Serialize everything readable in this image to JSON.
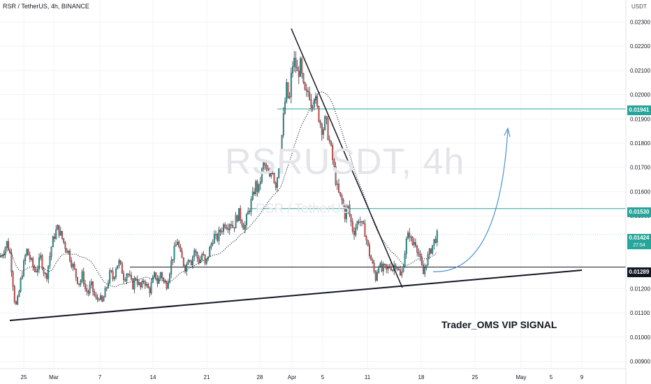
{
  "chart_data": {
    "type": "candlestick",
    "title": "RSR / TetherUS, 4h, BINANCE",
    "watermark": "RSRUSDT, 4h",
    "watermark_sub": "RSR / TetherUS",
    "currency": "USDT",
    "y_ticks": [
      "0.02300",
      "0.02200",
      "0.02100",
      "0.02000",
      "0.01900",
      "0.01800",
      "0.01700",
      "0.01600",
      "0.01500",
      "0.01200",
      "0.01100",
      "0.01000",
      "0.00900"
    ],
    "y_range": [
      0.0087,
      0.0235
    ],
    "x_ticks": [
      "25",
      "Mar",
      "7",
      "14",
      "21",
      "28",
      "Apr",
      "5",
      "11",
      "18",
      "25",
      "May",
      "5",
      "9"
    ],
    "price_tags": {
      "resistance_high": "0.01941",
      "resistance_mid": "0.01530",
      "current_price": "0.01424",
      "countdown": "27:54",
      "support": "0.01289"
    },
    "levels": [
      {
        "name": "resistance-high",
        "value": 0.01941,
        "color": "#26a69a"
      },
      {
        "name": "resistance-mid",
        "value": 0.0153,
        "color": "#26a69a"
      },
      {
        "name": "support",
        "value": 0.01289,
        "color": "#131722"
      }
    ],
    "close_path": [
      [
        0,
        0.0133
      ],
      [
        6,
        0.0136
      ],
      [
        10,
        0.0139
      ],
      [
        14,
        0.0135
      ],
      [
        18,
        0.0124
      ],
      [
        22,
        0.0112
      ],
      [
        26,
        0.0116
      ],
      [
        30,
        0.0124
      ],
      [
        34,
        0.013
      ],
      [
        38,
        0.0136
      ],
      [
        42,
        0.0133
      ],
      [
        46,
        0.013
      ],
      [
        50,
        0.0127
      ],
      [
        54,
        0.0129
      ],
      [
        58,
        0.0133
      ],
      [
        62,
        0.0128
      ],
      [
        66,
        0.0124
      ],
      [
        70,
        0.0131
      ],
      [
        74,
        0.0138
      ],
      [
        78,
        0.0142
      ],
      [
        82,
        0.0145
      ],
      [
        86,
        0.0143
      ],
      [
        90,
        0.014
      ],
      [
        94,
        0.0137
      ],
      [
        98,
        0.0135
      ],
      [
        102,
        0.0131
      ],
      [
        106,
        0.0128
      ],
      [
        110,
        0.0124
      ],
      [
        114,
        0.0122
      ],
      [
        118,
        0.0126
      ],
      [
        122,
        0.012
      ],
      [
        126,
        0.0118
      ],
      [
        130,
        0.0122
      ],
      [
        134,
        0.0118
      ],
      [
        138,
        0.0115
      ],
      [
        142,
        0.0117
      ],
      [
        146,
        0.0114
      ],
      [
        150,
        0.0118
      ],
      [
        154,
        0.0122
      ],
      [
        158,
        0.0127
      ],
      [
        162,
        0.0124
      ],
      [
        166,
        0.0129
      ],
      [
        170,
        0.0131
      ],
      [
        174,
        0.0128
      ],
      [
        178,
        0.0124
      ],
      [
        182,
        0.0127
      ],
      [
        186,
        0.0124
      ],
      [
        190,
        0.0121
      ],
      [
        194,
        0.0125
      ],
      [
        198,
        0.0122
      ],
      [
        202,
        0.012
      ],
      [
        206,
        0.0124
      ],
      [
        210,
        0.0121
      ],
      [
        214,
        0.0119
      ],
      [
        218,
        0.0123
      ],
      [
        222,
        0.0126
      ],
      [
        226,
        0.0122
      ],
      [
        230,
        0.0127
      ],
      [
        234,
        0.0123
      ],
      [
        238,
        0.0121
      ],
      [
        242,
        0.0126
      ],
      [
        246,
        0.0132
      ],
      [
        250,
        0.0136
      ],
      [
        254,
        0.014
      ],
      [
        258,
        0.0134
      ],
      [
        262,
        0.0131
      ],
      [
        266,
        0.0128
      ],
      [
        270,
        0.0134
      ],
      [
        274,
        0.0131
      ],
      [
        278,
        0.0136
      ],
      [
        282,
        0.0133
      ],
      [
        286,
        0.0131
      ],
      [
        290,
        0.0135
      ],
      [
        294,
        0.0129
      ],
      [
        298,
        0.0134
      ],
      [
        302,
        0.0138
      ],
      [
        306,
        0.0142
      ],
      [
        310,
        0.014
      ],
      [
        314,
        0.0143
      ],
      [
        318,
        0.0145
      ],
      [
        322,
        0.0147
      ],
      [
        326,
        0.0146
      ],
      [
        330,
        0.0148
      ],
      [
        334,
        0.0145
      ],
      [
        338,
        0.0149
      ],
      [
        342,
        0.0151
      ],
      [
        346,
        0.0148
      ],
      [
        350,
        0.0145
      ],
      [
        354,
        0.015
      ],
      [
        358,
        0.0154
      ],
      [
        362,
        0.0158
      ],
      [
        366,
        0.0163
      ],
      [
        370,
        0.016
      ],
      [
        374,
        0.0167
      ],
      [
        378,
        0.0172
      ],
      [
        382,
        0.0168
      ],
      [
        386,
        0.0165
      ],
      [
        390,
        0.017
      ],
      [
        394,
        0.0162
      ],
      [
        398,
        0.0168
      ],
      [
        402,
        0.0178
      ],
      [
        406,
        0.0191
      ],
      [
        410,
        0.0203
      ],
      [
        414,
        0.0196
      ],
      [
        418,
        0.0212
      ],
      [
        422,
        0.0214
      ],
      [
        426,
        0.0208
      ],
      [
        430,
        0.0212
      ],
      [
        434,
        0.0203
      ],
      [
        438,
        0.0199
      ],
      [
        442,
        0.0202
      ],
      [
        446,
        0.0196
      ],
      [
        450,
        0.02
      ],
      [
        454,
        0.0194
      ],
      [
        458,
        0.0189
      ],
      [
        462,
        0.0185
      ],
      [
        466,
        0.019
      ],
      [
        470,
        0.0183
      ],
      [
        474,
        0.0177
      ],
      [
        478,
        0.017
      ],
      [
        482,
        0.0162
      ],
      [
        486,
        0.0158
      ],
      [
        490,
        0.0156
      ],
      [
        494,
        0.015
      ],
      [
        498,
        0.0154
      ],
      [
        502,
        0.0148
      ],
      [
        506,
        0.0143
      ],
      [
        510,
        0.0146
      ],
      [
        514,
        0.0149
      ],
      [
        518,
        0.0146
      ],
      [
        522,
        0.0144
      ],
      [
        526,
        0.0138
      ],
      [
        530,
        0.0133
      ],
      [
        534,
        0.0129
      ],
      [
        538,
        0.0124
      ],
      [
        542,
        0.0131
      ],
      [
        546,
        0.0127
      ],
      [
        550,
        0.0129
      ],
      [
        554,
        0.0127
      ],
      [
        558,
        0.013
      ],
      [
        562,
        0.0128
      ],
      [
        566,
        0.0131
      ],
      [
        570,
        0.0128
      ],
      [
        574,
        0.0124
      ],
      [
        578,
        0.0132
      ],
      [
        582,
        0.014
      ],
      [
        586,
        0.0143
      ],
      [
        590,
        0.0138
      ],
      [
        594,
        0.014
      ],
      [
        598,
        0.0136
      ],
      [
        602,
        0.0131
      ],
      [
        606,
        0.0126
      ],
      [
        610,
        0.0131
      ],
      [
        614,
        0.0134
      ],
      [
        618,
        0.0137
      ],
      [
        622,
        0.014
      ],
      [
        626,
        0.0142
      ]
    ],
    "annotation": "Trader_OMS VIP SIGNAL"
  }
}
